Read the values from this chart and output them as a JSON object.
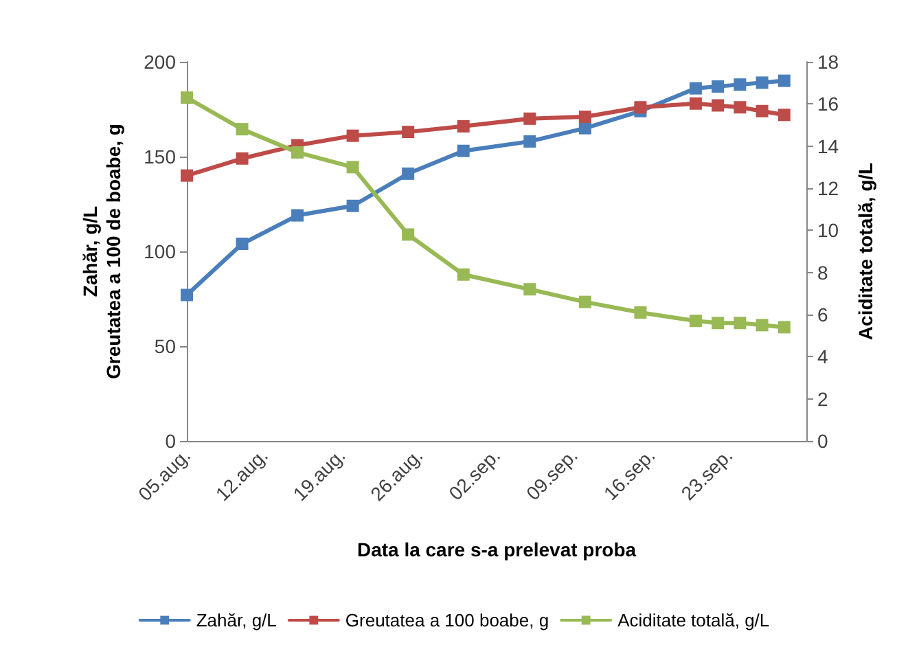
{
  "chart_data": {
    "type": "line",
    "xlabel": "Data la care s-a prelevat proba",
    "ylabel": "Zahăr, g/L\nGreutatea a 100 de boabe, g",
    "y2label": "Aciditate totală, g/L",
    "x": [
      "--08-05",
      "--08-10",
      "--08-15",
      "--08-20",
      "--08-25",
      "--08-30",
      "--09-05",
      "--09-10",
      "--09-15",
      "--09-20",
      "--09-22",
      "--09-24",
      "--09-26",
      "--09-28"
    ],
    "xlim": [
      "--08-05",
      "--09-30"
    ],
    "xticks": [
      {
        "value": "--08-05",
        "label": "05.aug."
      },
      {
        "value": "--08-12",
        "label": "12.aug."
      },
      {
        "value": "--08-19",
        "label": "19.aug."
      },
      {
        "value": "--08-26",
        "label": "26.aug."
      },
      {
        "value": "--09-02",
        "label": "02.sep."
      },
      {
        "value": "--09-09",
        "label": "09.sep."
      },
      {
        "value": "--09-16",
        "label": "16.sep."
      },
      {
        "value": "--09-23",
        "label": "23.sep."
      }
    ],
    "ylim": [
      0,
      200
    ],
    "yticks": [
      0,
      50,
      100,
      150,
      200
    ],
    "y2lim": [
      0,
      18
    ],
    "y2ticks": [
      0,
      2,
      4,
      6,
      8,
      10,
      12,
      14,
      16,
      18
    ],
    "series": [
      {
        "name": "Zahăr, g/L",
        "color": "#4a7ebb",
        "values": [
          77,
          104,
          119,
          124,
          141,
          153,
          158,
          165,
          174,
          186,
          187,
          188,
          189,
          190
        ]
      },
      {
        "name": "Greutatea a 100 boabe, g",
        "color": "#be4b48",
        "values": [
          140,
          149,
          156,
          161,
          163,
          166,
          170,
          171,
          176,
          178,
          177,
          176,
          174,
          172
        ]
      },
      {
        "name": "Aciditate totală, g/L",
        "color": "#98b954",
        "axis": "y2",
        "values": [
          16.3,
          14.8,
          13.7,
          13.0,
          9.8,
          7.9,
          7.2,
          6.6,
          6.1,
          5.7,
          5.6,
          5.6,
          5.5,
          5.4
        ]
      }
    ],
    "legend": "bottom",
    "grid": false,
    "marker": "square",
    "line_style": "solid"
  }
}
